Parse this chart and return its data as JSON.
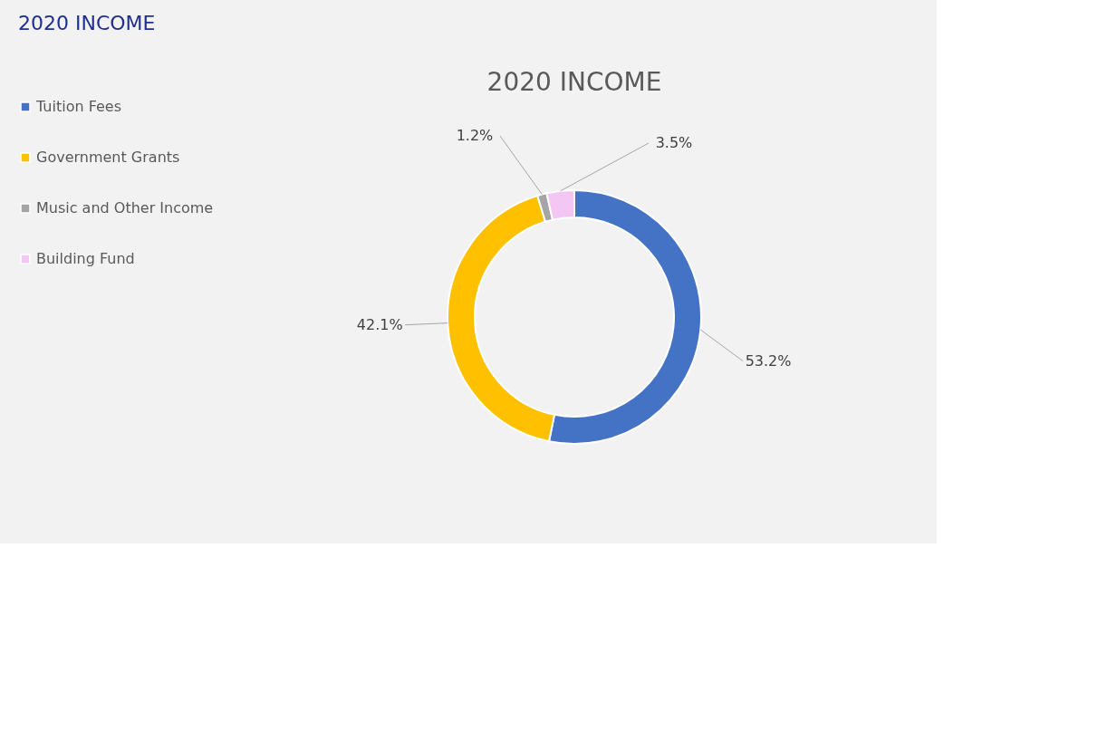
{
  "chart_data": {
    "type": "donut",
    "title": "2020 INCOME",
    "annotations": [
      "2020 INCOME"
    ],
    "categories": [
      "Tuition Fees",
      "Government Grants",
      "Music and Other Income",
      "Building Fund"
    ],
    "values": [
      53.2,
      42.1,
      1.2,
      3.5
    ],
    "colors": [
      "#4472c4",
      "#ffc000",
      "#a5a5a5",
      "#f4c6f4"
    ],
    "value_labels": [
      "53.2%",
      "42.1%",
      "1.2%",
      "3.5%"
    ],
    "legend": "left"
  }
}
